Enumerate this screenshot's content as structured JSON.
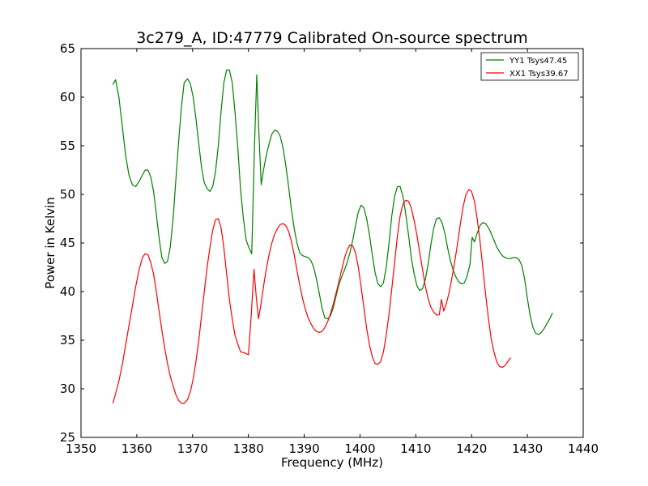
{
  "chart_data": {
    "type": "line",
    "title": "3c279_A, ID:47779 Calibrated On-source spectrum",
    "xlabel": "Frequency (MHz)",
    "ylabel": "Power in Kelvin",
    "xlim": [
      1350,
      1440
    ],
    "ylim": [
      25,
      65
    ],
    "xticks": [
      1350,
      1360,
      1370,
      1380,
      1390,
      1400,
      1410,
      1420,
      1430,
      1440
    ],
    "yticks": [
      25,
      30,
      35,
      40,
      45,
      50,
      55,
      60,
      65
    ],
    "grid": false,
    "legend_position": "top-right",
    "series": [
      {
        "name": "YY1 Tsys47.45",
        "color": "#008000",
        "points": [
          [
            1355.7,
            61.3
          ],
          [
            1356.2,
            61.8
          ],
          [
            1356.8,
            60.0
          ],
          [
            1357.4,
            57.0
          ],
          [
            1358.0,
            54.0
          ],
          [
            1358.6,
            52.0
          ],
          [
            1359.2,
            51.0
          ],
          [
            1359.8,
            50.8
          ],
          [
            1360.4,
            51.3
          ],
          [
            1361.0,
            52.0
          ],
          [
            1361.5,
            52.5
          ],
          [
            1362.0,
            52.5
          ],
          [
            1362.5,
            51.8
          ],
          [
            1363.0,
            50.3
          ],
          [
            1363.5,
            48.0
          ],
          [
            1364.0,
            45.5
          ],
          [
            1364.5,
            43.5
          ],
          [
            1365.0,
            42.9
          ],
          [
            1365.5,
            43.1
          ],
          [
            1366.0,
            44.6
          ],
          [
            1366.5,
            47.5
          ],
          [
            1367.0,
            51.5
          ],
          [
            1367.5,
            55.5
          ],
          [
            1368.0,
            59.0
          ],
          [
            1368.5,
            61.5
          ],
          [
            1369.1,
            61.9
          ],
          [
            1369.6,
            61.4
          ],
          [
            1370.1,
            60.0
          ],
          [
            1370.6,
            57.8
          ],
          [
            1371.1,
            55.2
          ],
          [
            1371.6,
            52.8
          ],
          [
            1372.1,
            51.2
          ],
          [
            1372.6,
            50.6
          ],
          [
            1373.1,
            50.3
          ],
          [
            1373.6,
            50.8
          ],
          [
            1374.1,
            52.3
          ],
          [
            1374.6,
            55.0
          ],
          [
            1375.1,
            58.5
          ],
          [
            1375.6,
            61.5
          ],
          [
            1376.1,
            62.8
          ],
          [
            1376.6,
            62.8
          ],
          [
            1377.1,
            61.5
          ],
          [
            1377.6,
            58.5
          ],
          [
            1378.1,
            54.8
          ],
          [
            1378.6,
            50.5
          ],
          [
            1379.1,
            47.5
          ],
          [
            1379.6,
            45.3
          ],
          [
            1380.1,
            44.5
          ],
          [
            1380.6,
            43.9
          ],
          [
            1381.1,
            55.0
          ],
          [
            1381.5,
            62.3
          ],
          [
            1381.9,
            56.0
          ],
          [
            1382.3,
            51.0
          ],
          [
            1382.7,
            52.5
          ],
          [
            1383.2,
            54.0
          ],
          [
            1383.7,
            55.2
          ],
          [
            1384.2,
            56.2
          ],
          [
            1384.7,
            56.6
          ],
          [
            1385.2,
            56.5
          ],
          [
            1385.7,
            56.0
          ],
          [
            1386.2,
            54.8
          ],
          [
            1386.7,
            53.0
          ],
          [
            1387.2,
            50.8
          ],
          [
            1387.7,
            48.5
          ],
          [
            1388.2,
            46.5
          ],
          [
            1388.7,
            45.0
          ],
          [
            1389.2,
            44.0
          ],
          [
            1389.7,
            43.7
          ],
          [
            1390.2,
            43.6
          ],
          [
            1390.7,
            43.5
          ],
          [
            1391.2,
            43.2
          ],
          [
            1391.7,
            42.5
          ],
          [
            1392.2,
            41.3
          ],
          [
            1392.7,
            39.8
          ],
          [
            1393.2,
            38.3
          ],
          [
            1393.7,
            37.3
          ],
          [
            1394.2,
            37.2
          ],
          [
            1394.7,
            37.5
          ],
          [
            1395.2,
            38.3
          ],
          [
            1395.7,
            39.5
          ],
          [
            1396.2,
            40.7
          ],
          [
            1396.7,
            41.5
          ],
          [
            1397.2,
            42.2
          ],
          [
            1397.7,
            43.0
          ],
          [
            1398.2,
            44.0
          ],
          [
            1398.7,
            45.3
          ],
          [
            1399.2,
            46.8
          ],
          [
            1399.7,
            48.2
          ],
          [
            1400.2,
            48.9
          ],
          [
            1400.7,
            48.6
          ],
          [
            1401.2,
            47.5
          ],
          [
            1401.7,
            45.8
          ],
          [
            1402.2,
            43.8
          ],
          [
            1402.7,
            42.0
          ],
          [
            1403.2,
            40.8
          ],
          [
            1403.7,
            40.5
          ],
          [
            1404.2,
            40.9
          ],
          [
            1404.7,
            42.5
          ],
          [
            1405.2,
            45.0
          ],
          [
            1405.7,
            47.8
          ],
          [
            1406.2,
            49.8
          ],
          [
            1406.7,
            50.8
          ],
          [
            1407.2,
            50.8
          ],
          [
            1407.7,
            49.8
          ],
          [
            1408.2,
            48.0
          ],
          [
            1408.7,
            45.8
          ],
          [
            1409.2,
            43.5
          ],
          [
            1409.7,
            41.8
          ],
          [
            1410.2,
            40.6
          ],
          [
            1410.7,
            40.1
          ],
          [
            1411.2,
            40.3
          ],
          [
            1411.7,
            41.2
          ],
          [
            1412.2,
            42.8
          ],
          [
            1412.7,
            44.8
          ],
          [
            1413.2,
            46.5
          ],
          [
            1413.7,
            47.5
          ],
          [
            1414.2,
            47.6
          ],
          [
            1414.7,
            47.1
          ],
          [
            1415.2,
            46.0
          ],
          [
            1415.7,
            44.5
          ],
          [
            1416.2,
            43.2
          ],
          [
            1416.7,
            42.2
          ],
          [
            1417.2,
            41.5
          ],
          [
            1417.7,
            41.0
          ],
          [
            1418.2,
            40.8
          ],
          [
            1418.7,
            40.9
          ],
          [
            1419.2,
            41.6
          ],
          [
            1419.7,
            42.8
          ],
          [
            1420.1,
            45.6
          ],
          [
            1420.5,
            45.1
          ],
          [
            1421.0,
            46.0
          ],
          [
            1421.5,
            46.8
          ],
          [
            1422.0,
            47.1
          ],
          [
            1422.5,
            47.0
          ],
          [
            1423.0,
            46.6
          ],
          [
            1423.5,
            46.0
          ],
          [
            1424.0,
            45.3
          ],
          [
            1424.5,
            44.6
          ],
          [
            1425.0,
            44.1
          ],
          [
            1425.5,
            43.7
          ],
          [
            1426.0,
            43.5
          ],
          [
            1426.5,
            43.4
          ],
          [
            1427.0,
            43.4
          ],
          [
            1427.5,
            43.5
          ],
          [
            1428.0,
            43.5
          ],
          [
            1428.5,
            43.3
          ],
          [
            1429.0,
            42.7
          ],
          [
            1429.5,
            41.3
          ],
          [
            1430.0,
            39.3
          ],
          [
            1430.5,
            37.5
          ],
          [
            1431.0,
            36.3
          ],
          [
            1431.5,
            35.7
          ],
          [
            1432.0,
            35.6
          ],
          [
            1432.5,
            35.8
          ],
          [
            1433.0,
            36.2
          ],
          [
            1433.5,
            36.7
          ],
          [
            1434.0,
            37.2
          ],
          [
            1434.5,
            37.8
          ]
        ]
      },
      {
        "name": "XX1 Tsys39.67",
        "color": "#ff0000",
        "points": [
          [
            1355.7,
            28.5
          ],
          [
            1356.2,
            29.5
          ],
          [
            1356.8,
            30.8
          ],
          [
            1357.4,
            32.5
          ],
          [
            1358.0,
            34.5
          ],
          [
            1358.6,
            36.5
          ],
          [
            1359.2,
            38.5
          ],
          [
            1359.8,
            40.5
          ],
          [
            1360.4,
            42.2
          ],
          [
            1361.0,
            43.5
          ],
          [
            1361.5,
            43.9
          ],
          [
            1362.0,
            43.8
          ],
          [
            1362.5,
            43.0
          ],
          [
            1363.0,
            41.8
          ],
          [
            1363.5,
            40.0
          ],
          [
            1364.0,
            38.0
          ],
          [
            1364.5,
            36.0
          ],
          [
            1365.0,
            34.2
          ],
          [
            1365.5,
            32.6
          ],
          [
            1366.0,
            31.3
          ],
          [
            1366.5,
            30.3
          ],
          [
            1367.0,
            29.4
          ],
          [
            1367.5,
            28.8
          ],
          [
            1368.0,
            28.5
          ],
          [
            1368.5,
            28.5
          ],
          [
            1369.1,
            28.9
          ],
          [
            1369.6,
            29.7
          ],
          [
            1370.1,
            31.0
          ],
          [
            1370.6,
            32.8
          ],
          [
            1371.1,
            35.0
          ],
          [
            1371.6,
            37.5
          ],
          [
            1372.1,
            40.0
          ],
          [
            1372.6,
            42.5
          ],
          [
            1373.1,
            44.5
          ],
          [
            1373.6,
            46.3
          ],
          [
            1374.1,
            47.4
          ],
          [
            1374.6,
            47.5
          ],
          [
            1375.1,
            46.6
          ],
          [
            1375.6,
            44.5
          ],
          [
            1376.1,
            41.8
          ],
          [
            1376.6,
            39.2
          ],
          [
            1377.1,
            37.2
          ],
          [
            1377.6,
            35.5
          ],
          [
            1378.1,
            34.6
          ],
          [
            1378.6,
            33.8
          ],
          [
            1379.3,
            33.7
          ],
          [
            1380.0,
            33.5
          ],
          [
            1380.5,
            37.5
          ],
          [
            1381.0,
            42.3
          ],
          [
            1381.4,
            39.5
          ],
          [
            1381.8,
            37.2
          ],
          [
            1382.2,
            38.5
          ],
          [
            1382.7,
            40.5
          ],
          [
            1383.2,
            42.3
          ],
          [
            1383.7,
            43.8
          ],
          [
            1384.2,
            45.0
          ],
          [
            1384.7,
            45.9
          ],
          [
            1385.2,
            46.5
          ],
          [
            1385.7,
            46.9
          ],
          [
            1386.2,
            47.0
          ],
          [
            1386.7,
            46.8
          ],
          [
            1387.2,
            46.2
          ],
          [
            1387.7,
            45.2
          ],
          [
            1388.2,
            43.8
          ],
          [
            1388.7,
            42.2
          ],
          [
            1389.2,
            40.7
          ],
          [
            1389.7,
            39.3
          ],
          [
            1390.2,
            38.2
          ],
          [
            1390.7,
            37.3
          ],
          [
            1391.2,
            36.7
          ],
          [
            1391.7,
            36.2
          ],
          [
            1392.2,
            35.9
          ],
          [
            1392.7,
            35.8
          ],
          [
            1393.2,
            35.9
          ],
          [
            1393.7,
            36.3
          ],
          [
            1394.2,
            36.9
          ],
          [
            1394.7,
            37.7
          ],
          [
            1395.2,
            38.7
          ],
          [
            1395.7,
            39.8
          ],
          [
            1396.2,
            41.0
          ],
          [
            1396.7,
            42.2
          ],
          [
            1397.2,
            43.4
          ],
          [
            1397.7,
            44.3
          ],
          [
            1398.2,
            44.8
          ],
          [
            1398.7,
            44.7
          ],
          [
            1399.2,
            44.0
          ],
          [
            1399.7,
            42.5
          ],
          [
            1400.2,
            40.5
          ],
          [
            1400.7,
            38.3
          ],
          [
            1401.2,
            36.2
          ],
          [
            1401.7,
            34.5
          ],
          [
            1402.2,
            33.3
          ],
          [
            1402.7,
            32.6
          ],
          [
            1403.2,
            32.5
          ],
          [
            1403.7,
            32.8
          ],
          [
            1404.2,
            33.8
          ],
          [
            1404.7,
            35.5
          ],
          [
            1405.2,
            37.7
          ],
          [
            1405.7,
            40.3
          ],
          [
            1406.2,
            43.0
          ],
          [
            1406.7,
            45.7
          ],
          [
            1407.2,
            47.8
          ],
          [
            1407.7,
            49.0
          ],
          [
            1408.2,
            49.4
          ],
          [
            1408.7,
            49.3
          ],
          [
            1409.2,
            48.6
          ],
          [
            1409.7,
            47.3
          ],
          [
            1410.2,
            45.8
          ],
          [
            1410.7,
            44.0
          ],
          [
            1411.2,
            42.3
          ],
          [
            1411.7,
            40.6
          ],
          [
            1412.2,
            39.3
          ],
          [
            1412.7,
            38.4
          ],
          [
            1413.2,
            37.9
          ],
          [
            1413.7,
            37.6
          ],
          [
            1414.2,
            37.6
          ],
          [
            1414.6,
            39.2
          ],
          [
            1415.0,
            38.0
          ],
          [
            1415.5,
            38.8
          ],
          [
            1416.0,
            40.0
          ],
          [
            1416.5,
            41.5
          ],
          [
            1417.0,
            43.2
          ],
          [
            1417.5,
            45.0
          ],
          [
            1418.0,
            47.0
          ],
          [
            1418.5,
            48.8
          ],
          [
            1419.0,
            50.0
          ],
          [
            1419.5,
            50.5
          ],
          [
            1420.0,
            50.3
          ],
          [
            1420.5,
            49.3
          ],
          [
            1421.0,
            47.5
          ],
          [
            1421.5,
            45.2
          ],
          [
            1422.0,
            42.5
          ],
          [
            1422.5,
            39.8
          ],
          [
            1423.0,
            37.3
          ],
          [
            1423.5,
            35.2
          ],
          [
            1424.0,
            33.8
          ],
          [
            1424.5,
            32.8
          ],
          [
            1425.0,
            32.3
          ],
          [
            1425.5,
            32.2
          ],
          [
            1426.0,
            32.4
          ],
          [
            1426.5,
            32.8
          ],
          [
            1427.0,
            33.2
          ]
        ]
      }
    ]
  }
}
